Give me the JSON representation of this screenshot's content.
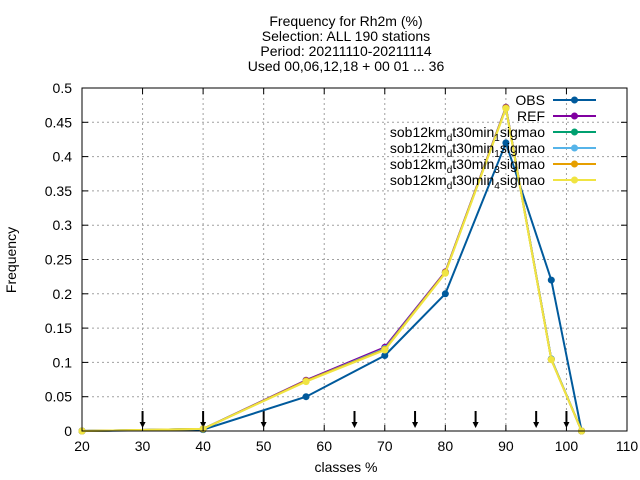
{
  "chart_data": {
    "type": "line",
    "title_lines": [
      "Frequency  for Rh2m (%)",
      "Selection: ALL    190 stations",
      "Period: 20211110-20211114",
      "Used 00,06,12,18 + 00 01 ... 36"
    ],
    "xlabel": "classes %",
    "ylabel": "Frequency",
    "xlim": [
      20,
      110
    ],
    "ylim": [
      0,
      0.5
    ],
    "xticks": [
      20,
      30,
      40,
      50,
      60,
      70,
      80,
      90,
      100,
      110
    ],
    "yticks": [
      0,
      0.05,
      0.1,
      0.15,
      0.2,
      0.25,
      0.3,
      0.35,
      0.4,
      0.45,
      0.5
    ],
    "xtick_labels": [
      "20",
      "30",
      "40",
      "50",
      "60",
      "70",
      "80",
      "90",
      "100",
      "110"
    ],
    "ytick_labels": [
      "0",
      "0.05",
      "0.1",
      "0.15",
      "0.2",
      "0.25",
      "0.3",
      "0.35",
      "0.4",
      "0.45",
      "0.5"
    ],
    "grid": true,
    "legend_position": "top-right",
    "class_markers_x": [
      30,
      40,
      50,
      65,
      75,
      85,
      95,
      100
    ],
    "series": [
      {
        "name": "OBS",
        "color": "#005a9c",
        "x": [
          20,
          40,
          57,
          70,
          80,
          90,
          97.5,
          102.5
        ],
        "y": [
          0.0,
          0.002,
          0.05,
          0.11,
          0.2,
          0.42,
          0.22,
          0.0
        ]
      },
      {
        "name": "REF",
        "color": "#8000a0",
        "x": [
          20,
          40,
          57,
          70,
          80,
          90,
          97.5,
          102.5
        ],
        "y": [
          0.0,
          0.003,
          0.074,
          0.122,
          0.232,
          0.472,
          0.105,
          0.0
        ]
      },
      {
        "name_parts": [
          "sob12km",
          "d",
          "t30min",
          "1",
          "sigmao"
        ],
        "color": "#00a070",
        "x": [
          20,
          40,
          57,
          70,
          80,
          90,
          97.5,
          102.5
        ],
        "y": [
          0.0,
          0.003,
          0.073,
          0.12,
          0.231,
          0.471,
          0.105,
          0.0
        ]
      },
      {
        "name_parts": [
          "sob12km",
          "d",
          "t30min",
          "1",
          "sigmao"
        ],
        "color": "#56b4e9",
        "x": [
          20,
          40,
          57,
          70,
          80,
          90,
          97.5,
          102.5
        ],
        "y": [
          0.0,
          0.003,
          0.073,
          0.12,
          0.231,
          0.471,
          0.105,
          0.0
        ]
      },
      {
        "name_parts": [
          "sob12km",
          "d",
          "t30min",
          "3",
          "sigmao"
        ],
        "color": "#e69f00",
        "x": [
          20,
          40,
          57,
          70,
          80,
          90,
          97.5,
          102.5
        ],
        "y": [
          0.0,
          0.003,
          0.073,
          0.119,
          0.231,
          0.471,
          0.104,
          0.0
        ]
      },
      {
        "name_parts": [
          "sob12km",
          "d",
          "t30min",
          "4",
          "sigmao"
        ],
        "color": "#f0e442",
        "x": [
          20,
          40,
          57,
          70,
          80,
          90,
          97.5,
          102.5
        ],
        "y": [
          0.0,
          0.003,
          0.072,
          0.118,
          0.23,
          0.47,
          0.104,
          0.0
        ]
      }
    ]
  }
}
